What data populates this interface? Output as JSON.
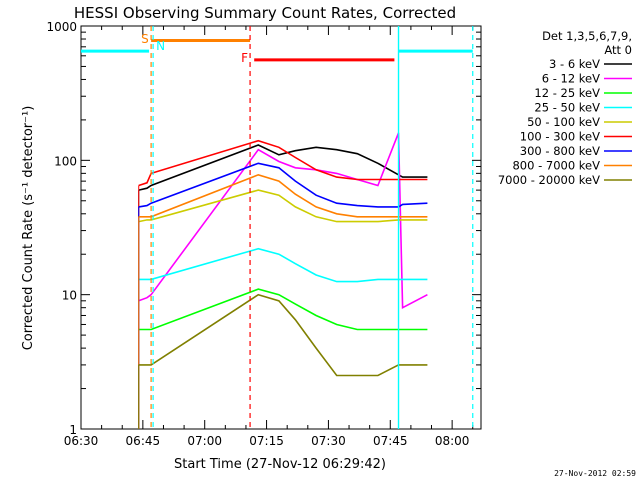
{
  "chart_data": {
    "type": "line",
    "title": "HESSI Observing Summary Count Rates, Corrected",
    "xlabel": "Start Time (27-Nov-12 06:29:42)",
    "ylabel": "Corrected Count Rate (s⁻¹ detector⁻¹)",
    "yscale": "log",
    "ylim": [
      1,
      1000
    ],
    "xlim": [
      "06:30",
      "08:07"
    ],
    "x_ticks": [
      "06:30",
      "06:45",
      "07:00",
      "07:15",
      "07:30",
      "07:45",
      "08:00"
    ],
    "y_ticks": [
      "1",
      "10",
      "100",
      "1000"
    ],
    "legend": {
      "header_lines": [
        "Det 1,3,5,6,7,9,",
        "Att 0"
      ],
      "placement": "right"
    },
    "series": [
      {
        "name": "3 - 6 keV",
        "color": "#000000",
        "x": [
          "06:44",
          "06:46",
          "06:47",
          "07:13",
          "07:18",
          "07:22",
          "07:27",
          "07:32",
          "07:37",
          "07:42",
          "07:47",
          "07:48",
          "07:54"
        ],
        "y": [
          60,
          62,
          65,
          130,
          110,
          118,
          125,
          120,
          112,
          95,
          78,
          75,
          75
        ]
      },
      {
        "name": "6 - 12 keV",
        "color": "#ff00ff",
        "x": [
          "06:44",
          "06:46",
          "06:47",
          "07:13",
          "07:18",
          "07:22",
          "07:27",
          "07:32",
          "07:37",
          "07:42",
          "07:47",
          "07:48",
          "07:54"
        ],
        "y": [
          9,
          9.5,
          10,
          120,
          98,
          88,
          85,
          80,
          72,
          65,
          160,
          8,
          10
        ]
      },
      {
        "name": "12 - 25 keV",
        "color": "#00ff00",
        "x": [
          "06:44",
          "06:46",
          "06:47",
          "07:13",
          "07:18",
          "07:22",
          "07:27",
          "07:32",
          "07:37",
          "07:42",
          "07:47",
          "07:48",
          "07:54"
        ],
        "y": [
          5.5,
          5.5,
          5.5,
          11,
          10,
          8.5,
          7,
          6,
          5.5,
          5.5,
          5.5,
          5.5,
          5.5
        ]
      },
      {
        "name": "25 - 50 keV",
        "color": "#00ffff",
        "x": [
          "06:44",
          "06:46",
          "06:47",
          "07:13",
          "07:18",
          "07:22",
          "07:27",
          "07:32",
          "07:37",
          "07:42",
          "07:47",
          "07:48",
          "07:54"
        ],
        "y": [
          13,
          13,
          13,
          22,
          20,
          17,
          14,
          12.5,
          12.5,
          13,
          13,
          13,
          13
        ]
      },
      {
        "name": "50 - 100 keV",
        "color": "#cccc00",
        "x": [
          "06:44",
          "06:46",
          "06:47",
          "07:13",
          "07:18",
          "07:22",
          "07:27",
          "07:32",
          "07:37",
          "07:42",
          "07:47",
          "07:48",
          "07:54"
        ],
        "y": [
          35,
          36,
          36,
          60,
          55,
          45,
          38,
          35,
          35,
          35,
          36,
          36,
          36
        ]
      },
      {
        "name": "100 - 300 keV",
        "color": "#ff0000",
        "x": [
          "06:44",
          "06:46",
          "06:47",
          "07:13",
          "07:18",
          "07:22",
          "07:27",
          "07:32",
          "07:37",
          "07:42",
          "07:47",
          "07:48",
          "07:54"
        ],
        "y": [
          65,
          68,
          80,
          140,
          125,
          105,
          85,
          75,
          72,
          72,
          72,
          72,
          72
        ]
      },
      {
        "name": "300 - 800 keV",
        "color": "#0000ff",
        "x": [
          "06:44",
          "06:46",
          "06:47",
          "07:13",
          "07:18",
          "07:22",
          "07:27",
          "07:32",
          "07:37",
          "07:42",
          "07:47",
          "07:48",
          "07:54"
        ],
        "y": [
          45,
          46,
          48,
          95,
          88,
          70,
          55,
          48,
          46,
          45,
          45,
          47,
          48
        ]
      },
      {
        "name": "800 - 7000 keV",
        "color": "#ff8000",
        "x": [
          "06:44",
          "06:46",
          "06:47",
          "07:13",
          "07:18",
          "07:22",
          "07:27",
          "07:32",
          "07:37",
          "07:42",
          "07:47",
          "07:48",
          "07:54"
        ],
        "y": [
          38,
          38,
          38,
          78,
          70,
          56,
          45,
          40,
          38,
          38,
          38,
          38,
          38
        ]
      },
      {
        "name": "7000 - 20000 keV",
        "color": "#808000",
        "x": [
          "06:44",
          "06:46",
          "06:47",
          "07:13",
          "07:18",
          "07:22",
          "07:27",
          "07:32",
          "07:37",
          "07:42",
          "07:47",
          "07:48",
          "07:54"
        ],
        "y": [
          3,
          3,
          3,
          10,
          9,
          6.5,
          4,
          2.5,
          2.5,
          2.5,
          3,
          3,
          3
        ]
      }
    ],
    "annotations": [
      {
        "label": "S",
        "color": "#ff8000",
        "x": "06:47"
      },
      {
        "label": "N",
        "color": "#00ffff",
        "x": "06:47"
      },
      {
        "label": "F",
        "color": "#ff0000",
        "x": "07:11"
      }
    ],
    "flag_bars": [
      {
        "color": "#00ffff",
        "x_start": "06:30",
        "x_end": "06:46.5",
        "y": 650
      },
      {
        "color": "#ff8000",
        "x_start": "06:47",
        "x_end": "07:11",
        "y": 780
      },
      {
        "color": "#ff0000",
        "x_start": "07:12",
        "x_end": "07:46",
        "y": 560
      },
      {
        "color": "#00ffff",
        "x_start": "07:47",
        "x_end": "08:05",
        "y": 650
      }
    ],
    "footer_timestamp": "27-Nov-2012 02:59"
  }
}
